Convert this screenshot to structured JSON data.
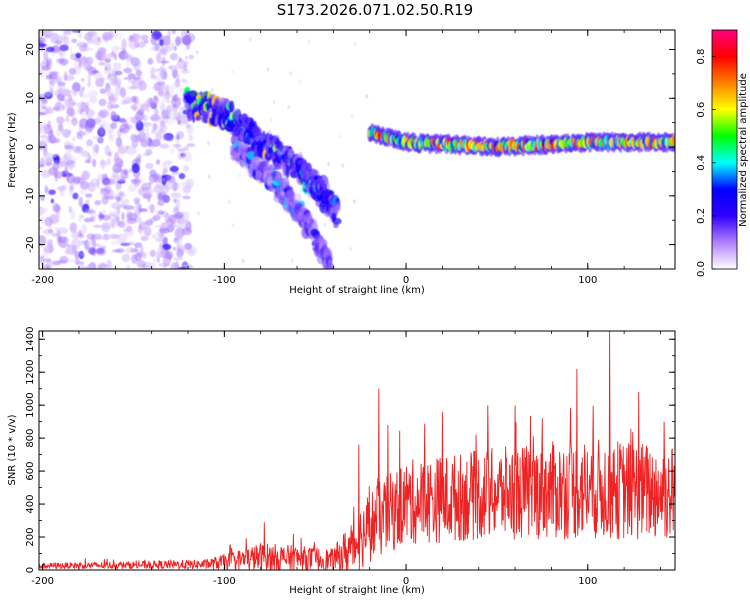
{
  "title": "S173.2026.071.02.50.R19",
  "chart_data": [
    {
      "type": "heatmap",
      "xlabel": "Height of straight line (km)",
      "ylabel": "Frequency (Hz)",
      "xlim": [
        -202,
        148
      ],
      "ylim": [
        -25,
        24
      ],
      "xticks": [
        -200,
        -100,
        0,
        100
      ],
      "yticks": [
        -20,
        -10,
        0,
        10,
        20
      ],
      "colorbar": {
        "label": "Normalized spectral amplitude",
        "range": [
          0.0,
          0.9
        ],
        "ticks": [
          0.0,
          0.2,
          0.4,
          0.6,
          0.8
        ],
        "colors": [
          "#ffffff",
          "#b080ff",
          "#3000ff",
          "#0000ff",
          "#00ffff",
          "#00ff00",
          "#ffff00",
          "#ff8000",
          "#ff0000",
          "#ff0080"
        ]
      },
      "features": [
        {
          "name": "noise region",
          "x_range": [
            -202,
            -118
          ],
          "freq_range": [
            -25,
            24
          ],
          "amplitude": 0.1
        },
        {
          "name": "ridge segment",
          "x": [
            -120,
            -100,
            -80,
            -60,
            -45,
            -38
          ],
          "freq": [
            9,
            7,
            1,
            -4,
            -10,
            -14
          ],
          "amplitude": 0.25
        },
        {
          "name": "lower branch",
          "x": [
            -95,
            -75,
            -55,
            -42
          ],
          "freq": [
            0,
            -6,
            -15,
            -24
          ],
          "amplitude": 0.15
        },
        {
          "name": "steady signal",
          "x": [
            -20,
            0,
            50,
            100,
            148
          ],
          "freq": [
            3,
            1,
            0,
            1,
            1
          ],
          "amplitude": 0.6
        }
      ]
    },
    {
      "type": "line",
      "xlabel": "Height of straight line (km)",
      "ylabel": "SNR (10 * v/v)",
      "xlim": [
        -202,
        148
      ],
      "ylim": [
        0,
        1450
      ],
      "xticks": [
        -200,
        -100,
        0,
        100
      ],
      "yticks": [
        0,
        200,
        400,
        600,
        800,
        1000,
        1200,
        1400
      ],
      "series": [
        {
          "name": "SNR",
          "color": "#ee2222",
          "envelope": [
            {
              "x": -202,
              "base": 20,
              "spread": 35
            },
            {
              "x": -110,
              "base": 25,
              "spread": 60
            },
            {
              "x": -80,
              "base": 50,
              "spread": 180
            },
            {
              "x": -40,
              "base": 40,
              "spread": 140
            },
            {
              "x": -30,
              "base": 80,
              "spread": 350
            },
            {
              "x": -20,
              "base": 200,
              "spread": 450
            },
            {
              "x": 0,
              "base": 330,
              "spread": 520
            },
            {
              "x": 50,
              "base": 380,
              "spread": 560
            },
            {
              "x": 100,
              "base": 400,
              "spread": 620
            },
            {
              "x": 148,
              "base": 380,
              "spread": 600
            }
          ],
          "peaks": [
            {
              "x": -97,
              "y": 145
            },
            {
              "x": -78,
              "y": 290
            },
            {
              "x": -62,
              "y": 220
            },
            {
              "x": -26,
              "y": 760
            },
            {
              "x": -15,
              "y": 1100
            },
            {
              "x": -10,
              "y": 880
            },
            {
              "x": 20,
              "y": 960
            },
            {
              "x": 45,
              "y": 1000
            },
            {
              "x": 60,
              "y": 1000
            },
            {
              "x": 75,
              "y": 920
            },
            {
              "x": 94,
              "y": 1220
            },
            {
              "x": 112,
              "y": 1450
            },
            {
              "x": 128,
              "y": 1080
            },
            {
              "x": 142,
              "y": 900
            }
          ]
        }
      ]
    }
  ]
}
